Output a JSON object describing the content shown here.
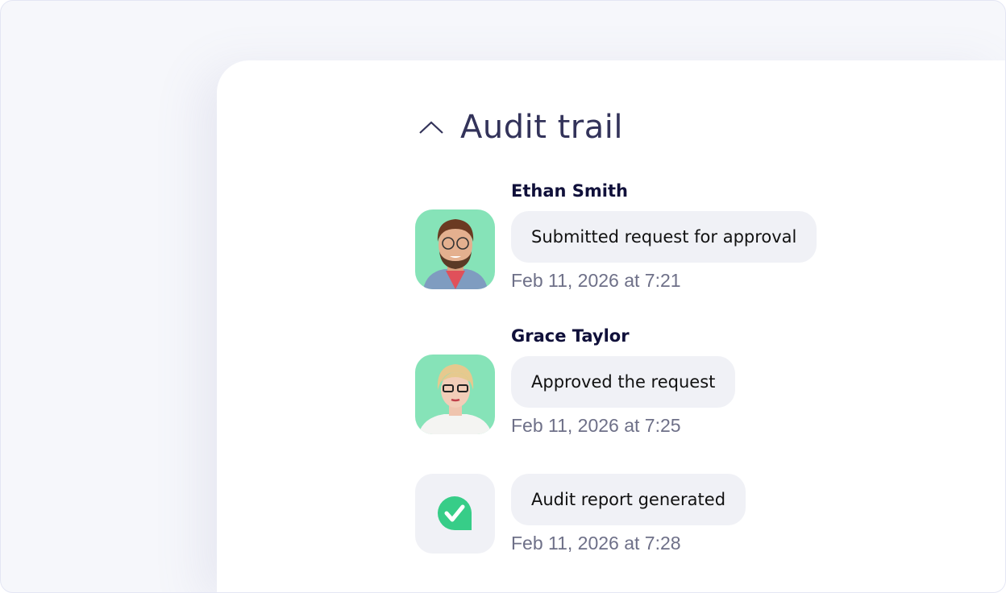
{
  "header": {
    "title": "Audit trail",
    "toggle_icon": "chevron-up-icon"
  },
  "entries": [
    {
      "name": "Ethan Smith",
      "action": "Submitted request for approval",
      "timestamp": "Feb 11, 2026 at 7:21",
      "avatar_bg": "#86e3b8"
    },
    {
      "name": "Grace Taylor",
      "action": "Approved the request",
      "timestamp": "Feb 11, 2026 at 7:25",
      "avatar_bg": "#86e3b8"
    },
    {
      "action": "Audit report generated",
      "timestamp": "Feb 11, 2026 at 7:28",
      "icon": "check-badge-icon",
      "icon_color": "#37cd88"
    }
  ]
}
